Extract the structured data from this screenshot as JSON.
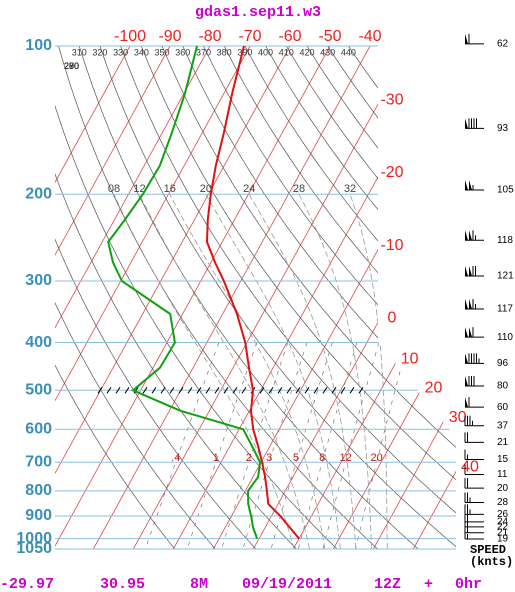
{
  "chart_data": {
    "type": "skewt",
    "title": "gdas1.sep11.w3",
    "log_scale": true,
    "ylim": [
      1050,
      100
    ],
    "yticks": [
      100,
      200,
      300,
      400,
      500,
      600,
      700,
      800,
      900,
      1000,
      1050
    ],
    "xticks": [
      -100,
      -90,
      -80,
      -70,
      -60,
      -50,
      -40,
      -30,
      -20,
      -10,
      0,
      10,
      20,
      30,
      40
    ],
    "pressure": [
      100,
      125,
      150,
      175,
      200,
      225,
      250,
      275,
      300,
      350,
      400,
      450,
      500,
      550,
      600,
      650,
      700,
      750,
      800,
      850,
      900,
      950,
      1000
    ],
    "series": [
      {
        "color": "#e01010",
        "values": [
          -71.5,
          -67.9,
          -64.6,
          -62.1,
          -59.4,
          -56.7,
          -53.8,
          -49,
          -44.2,
          -36.4,
          -30.4,
          -26,
          -21.9,
          -19.6,
          -16.5,
          -12.9,
          -9.75,
          -6.95,
          -4.6,
          -2.5,
          2.2,
          6.2,
          10
        ]
      },
      {
        "color": "#10a010",
        "values": [
          -83.25,
          -79.7,
          -77.6,
          -76.1,
          -76.4,
          -77.4,
          -78.5,
          -74.5,
          -69.7,
          -53.1,
          -48,
          -48.25,
          -51.9,
          -37.3,
          -19,
          -14.4,
          -10.25,
          -8.7,
          -9.3,
          -7.5,
          -5.1,
          -3,
          -0.5
        ]
      }
    ],
    "dry_adiabats": [
      250,
      260,
      270,
      280,
      290,
      300,
      310,
      320,
      330,
      340,
      350,
      360,
      370,
      380,
      390,
      400,
      410,
      420,
      430,
      440
    ],
    "moist_adiabats": [
      {
        "value": 8,
        "label": "08"
      },
      12,
      16,
      20,
      24,
      28,
      32
    ],
    "mixing_ratios": [
      {
        "value": 0.4,
        "label": ".4"
      },
      1,
      2,
      3,
      5,
      8,
      12,
      20
    ],
    "wind": {
      "label": "SPEED",
      "unit": "(knts)",
      "pressure": [
        99,
        147,
        196,
        248,
        293,
        342,
        390,
        441,
        490,
        541,
        590,
        638,
        691,
        741,
        790,
        845,
        893,
        925,
        947,
        973,
        1002
      ],
      "speed": [
        62,
        93,
        105,
        118,
        121,
        117,
        110,
        96,
        80,
        60,
        37,
        21,
        15,
        11,
        20,
        28,
        26,
        24,
        22,
        21,
        19
      ]
    },
    "footer": [
      "-29.97",
      "30.95",
      "8M",
      "09/19/2011",
      "12Z",
      "+",
      "0hr"
    ]
  }
}
